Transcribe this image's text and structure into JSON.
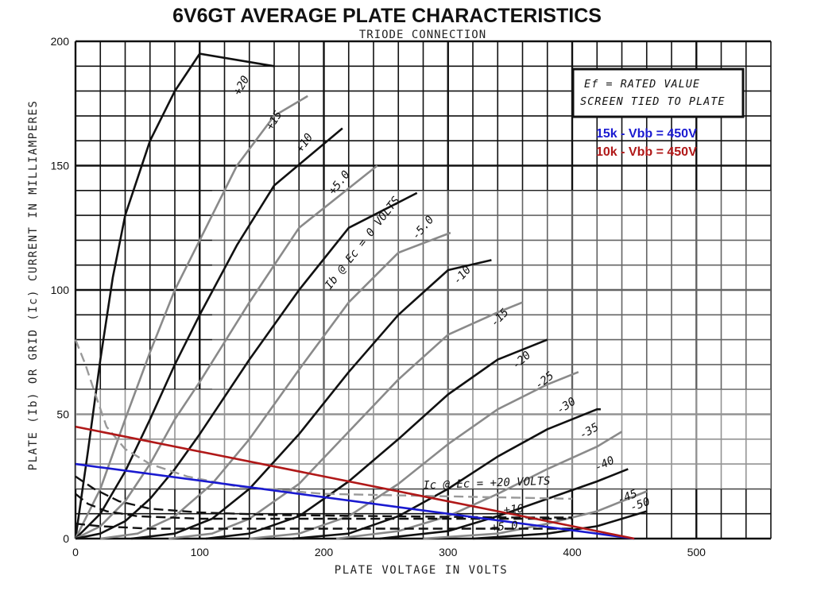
{
  "chart_data": {
    "type": "line",
    "title": "6V6GT AVERAGE PLATE CHARACTERISTICS",
    "subtitle": "TRIODE CONNECTION",
    "xlabel": "PLATE VOLTAGE IN VOLTS",
    "ylabel": "PLATE (Ib) OR GRID (Ic) CURRENT IN MILLIAMPERES",
    "xlim": [
      0,
      560
    ],
    "ylim": [
      0,
      200
    ],
    "x_ticks": [
      "0",
      "100",
      "200",
      "300",
      "400",
      "500"
    ],
    "y_ticks": [
      "0",
      "50",
      "100",
      "150",
      "200"
    ],
    "grid": true,
    "note_lines": [
      "Ef = RATED VALUE",
      "SCREEN TIED TO PLATE"
    ],
    "plate_curves": [
      {
        "label": "+20",
        "points": [
          [
            0,
            0
          ],
          [
            10,
            35
          ],
          [
            20,
            72
          ],
          [
            30,
            105
          ],
          [
            40,
            130
          ],
          [
            60,
            160
          ],
          [
            80,
            180
          ],
          [
            100,
            195
          ],
          [
            160,
            190
          ]
        ]
      },
      {
        "label": "+15",
        "points": [
          [
            0,
            0
          ],
          [
            20,
            20
          ],
          [
            40,
            48
          ],
          [
            60,
            75
          ],
          [
            80,
            100
          ],
          [
            100,
            120
          ],
          [
            130,
            150
          ],
          [
            160,
            170
          ],
          [
            187,
            178
          ]
        ]
      },
      {
        "label": "+10",
        "points": [
          [
            0,
            0
          ],
          [
            20,
            10
          ],
          [
            40,
            27
          ],
          [
            60,
            48
          ],
          [
            80,
            70
          ],
          [
            100,
            90
          ],
          [
            130,
            118
          ],
          [
            160,
            142
          ],
          [
            215,
            165
          ]
        ]
      },
      {
        "label": "+5.0",
        "points": [
          [
            0,
            0
          ],
          [
            20,
            5
          ],
          [
            40,
            15
          ],
          [
            60,
            30
          ],
          [
            80,
            48
          ],
          [
            100,
            63
          ],
          [
            140,
            95
          ],
          [
            180,
            125
          ],
          [
            243,
            150
          ]
        ]
      },
      {
        "label": "Ib @ Ec = 0 VOLTS",
        "points": [
          [
            0,
            0
          ],
          [
            20,
            2
          ],
          [
            40,
            7
          ],
          [
            60,
            16
          ],
          [
            80,
            28
          ],
          [
            100,
            42
          ],
          [
            140,
            72
          ],
          [
            180,
            100
          ],
          [
            220,
            125
          ],
          [
            275,
            139
          ]
        ]
      },
      {
        "label": "-5.0",
        "points": [
          [
            20,
            0
          ],
          [
            50,
            2
          ],
          [
            80,
            9
          ],
          [
            110,
            22
          ],
          [
            140,
            40
          ],
          [
            180,
            68
          ],
          [
            220,
            95
          ],
          [
            260,
            115
          ],
          [
            302,
            123
          ]
        ]
      },
      {
        "label": "-10",
        "points": [
          [
            45,
            0
          ],
          [
            80,
            2
          ],
          [
            110,
            8
          ],
          [
            140,
            20
          ],
          [
            180,
            42
          ],
          [
            220,
            67
          ],
          [
            260,
            90
          ],
          [
            300,
            108
          ],
          [
            335,
            112
          ]
        ]
      },
      {
        "label": "-15",
        "points": [
          [
            75,
            0
          ],
          [
            110,
            2
          ],
          [
            140,
            8
          ],
          [
            180,
            22
          ],
          [
            220,
            43
          ],
          [
            260,
            64
          ],
          [
            300,
            82
          ],
          [
            340,
            91
          ],
          [
            360,
            95
          ]
        ]
      },
      {
        "label": "-20",
        "points": [
          [
            105,
            0
          ],
          [
            140,
            2
          ],
          [
            180,
            9
          ],
          [
            220,
            23
          ],
          [
            260,
            40
          ],
          [
            300,
            58
          ],
          [
            340,
            72
          ],
          [
            380,
            80
          ]
        ]
      },
      {
        "label": "-25",
        "points": [
          [
            140,
            0
          ],
          [
            180,
            2
          ],
          [
            220,
            9
          ],
          [
            260,
            22
          ],
          [
            300,
            38
          ],
          [
            340,
            52
          ],
          [
            380,
            62
          ],
          [
            405,
            67
          ]
        ]
      },
      {
        "label": "-30",
        "points": [
          [
            175,
            0
          ],
          [
            220,
            2
          ],
          [
            260,
            9
          ],
          [
            300,
            20
          ],
          [
            340,
            33
          ],
          [
            380,
            44
          ],
          [
            420,
            52
          ],
          [
            423,
            52
          ]
        ]
      },
      {
        "label": "-35",
        "points": [
          [
            210,
            0
          ],
          [
            260,
            3
          ],
          [
            300,
            9
          ],
          [
            340,
            18
          ],
          [
            380,
            28
          ],
          [
            420,
            37
          ],
          [
            440,
            43
          ]
        ]
      },
      {
        "label": "-40",
        "points": [
          [
            245,
            0
          ],
          [
            300,
            3
          ],
          [
            340,
            9
          ],
          [
            380,
            16
          ],
          [
            420,
            23
          ],
          [
            445,
            28
          ]
        ]
      },
      {
        "label": "-45",
        "points": [
          [
            280,
            0
          ],
          [
            340,
            2
          ],
          [
            380,
            6
          ],
          [
            420,
            11
          ],
          [
            460,
            19
          ]
        ]
      },
      {
        "label": "-50",
        "points": [
          [
            320,
            0
          ],
          [
            380,
            2
          ],
          [
            420,
            5
          ],
          [
            460,
            11
          ]
        ]
      }
    ],
    "grid_curves": [
      {
        "label": "Ic @ Ec = +20 VOLTS",
        "points": [
          [
            0,
            80
          ],
          [
            8,
            70
          ],
          [
            16,
            58
          ],
          [
            25,
            45
          ],
          [
            40,
            36
          ],
          [
            60,
            30
          ],
          [
            90,
            25
          ],
          [
            130,
            21
          ],
          [
            200,
            18
          ],
          [
            300,
            17
          ],
          [
            400,
            16
          ]
        ]
      },
      {
        "label": "+10",
        "points": [
          [
            0,
            18
          ],
          [
            10,
            14
          ],
          [
            25,
            11
          ],
          [
            50,
            9
          ],
          [
            100,
            8
          ],
          [
            200,
            8
          ],
          [
            300,
            8
          ],
          [
            400,
            8
          ]
        ]
      },
      {
        "label": "+5.0",
        "points": [
          [
            0,
            6
          ],
          [
            20,
            5
          ],
          [
            60,
            4
          ],
          [
            150,
            4
          ],
          [
            300,
            4
          ],
          [
            400,
            4
          ]
        ]
      },
      {
        "label": "",
        "points": [
          [
            0,
            25
          ],
          [
            15,
            20
          ],
          [
            35,
            15
          ],
          [
            60,
            12
          ],
          [
            100,
            10.5
          ],
          [
            160,
            9.5
          ],
          [
            250,
            9
          ],
          [
            350,
            8.5
          ],
          [
            400,
            8.5
          ]
        ]
      }
    ],
    "load_lines": [
      {
        "name": "15k - Vbb = 450V",
        "color": "#1a1ad0",
        "points": [
          [
            0,
            30
          ],
          [
            450,
            0
          ]
        ]
      },
      {
        "name": "10k - Vbb = 450V",
        "color": "#b01818",
        "points": [
          [
            0,
            45
          ],
          [
            450,
            0
          ]
        ]
      }
    ]
  }
}
